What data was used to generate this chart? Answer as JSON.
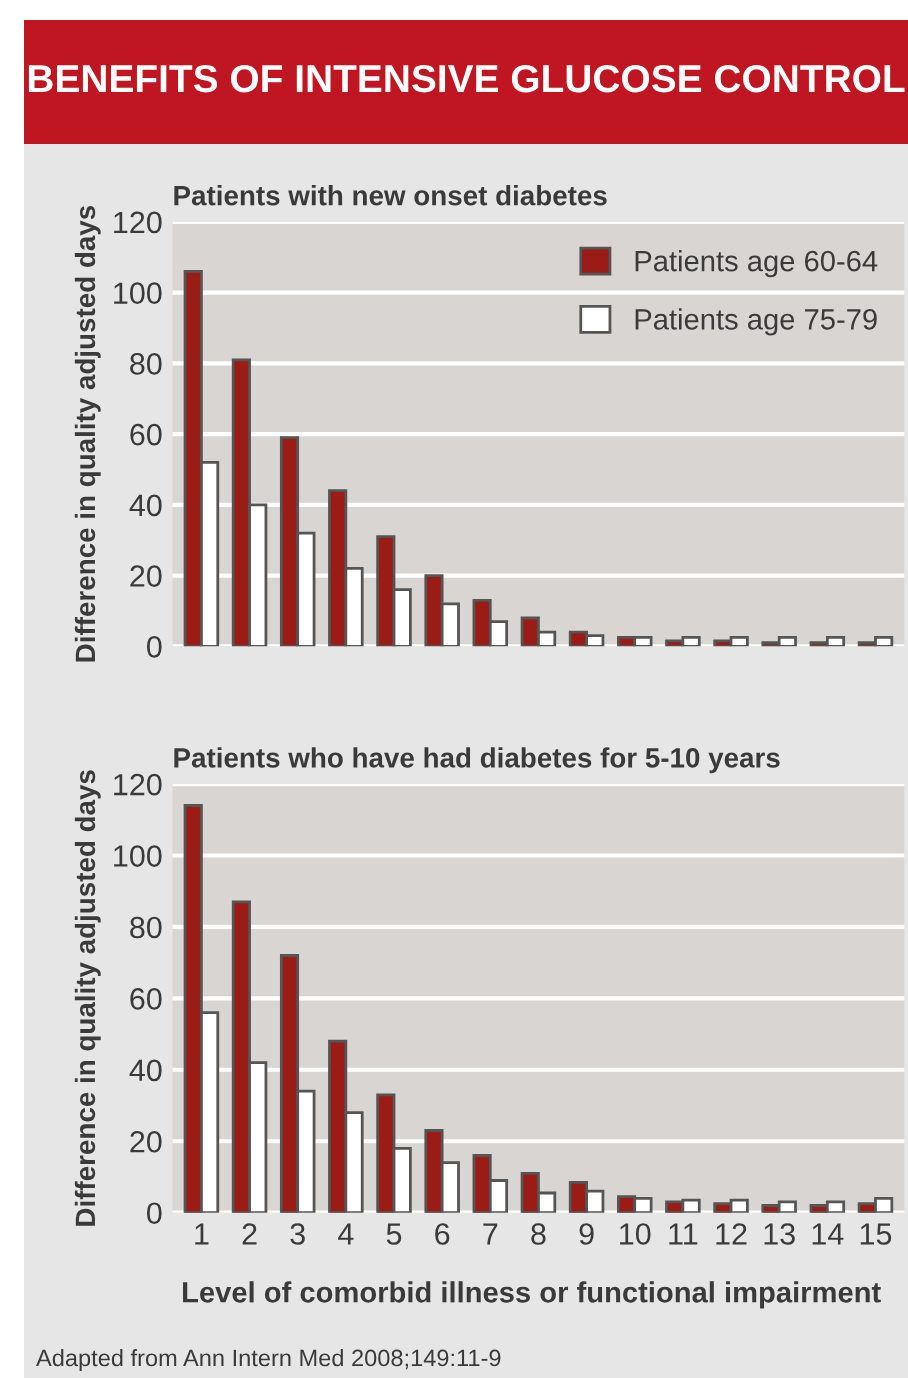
{
  "chart_data": [
    {
      "type": "bar",
      "title": "BENEFITS OF INTENSIVE GLUCOSE CONTROL",
      "subtitle": "Patients with new onset diabetes",
      "ylabel": "Difference in quality adjusted days",
      "categories": [
        "1",
        "2",
        "3",
        "4",
        "5",
        "6",
        "7",
        "8",
        "9",
        "10",
        "11",
        "12",
        "13",
        "14",
        "15"
      ],
      "series": [
        {
          "name": "Patients age 60-64",
          "color": "#9b1b17",
          "values": [
            106,
            81,
            59,
            44,
            31,
            20,
            13,
            8,
            4,
            2.5,
            1.5,
            1.5,
            1,
            1,
            1
          ]
        },
        {
          "name": "Patients age 75-79",
          "color": "#ffffff",
          "values": [
            52,
            40,
            32,
            22,
            16,
            12,
            7,
            4,
            3,
            2.5,
            2.5,
            2.5,
            2.5,
            2.5,
            2.5
          ]
        }
      ],
      "ylim": [
        0,
        120
      ],
      "yticks": [
        0,
        20,
        40,
        60,
        80,
        100,
        120
      ],
      "grid": "y",
      "legend": "top right",
      "tick_labels": "y"
    },
    {
      "type": "bar",
      "title": "Patients who have had diabetes for 5-10 years",
      "ylabel": "Difference in quality adjusted days",
      "xlabel": "Level of comorbid illness or functional impairment",
      "categories": [
        "1",
        "2",
        "3",
        "4",
        "5",
        "6",
        "7",
        "8",
        "9",
        "10",
        "11",
        "12",
        "13",
        "14",
        "15"
      ],
      "series": [
        {
          "color": "#9b1b17",
          "values": [
            114,
            87,
            72,
            48,
            33,
            23,
            16,
            11,
            8.5,
            4.5,
            3,
            2.5,
            2,
            2,
            2.5
          ]
        },
        {
          "color": "#ffffff",
          "values": [
            56,
            42,
            34,
            28,
            18,
            14,
            9,
            5.5,
            6,
            4,
            3.5,
            3.5,
            3,
            3,
            4
          ]
        }
      ],
      "ylim": [
        0,
        120
      ],
      "yticks": [
        0,
        20,
        40,
        60,
        80,
        100,
        120
      ],
      "grid": "y",
      "annotations": [
        "Adapted from Ann Intern Med 2008;149:11-9"
      ]
    }
  ]
}
